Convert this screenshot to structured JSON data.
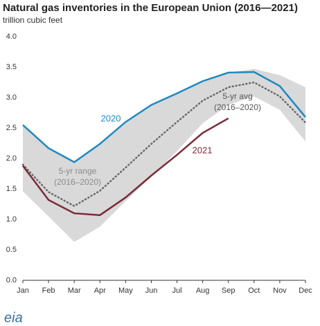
{
  "chart_data": {
    "type": "line",
    "title": "Natural gas inventories in the European Union (2016—2021)",
    "subtitle": "trillion cubic feet",
    "categories": [
      "Jan",
      "Feb",
      "Mar",
      "Apr",
      "May",
      "Jun",
      "Jul",
      "Aug",
      "Sep",
      "Oct",
      "Nov",
      "Dec"
    ],
    "series": [
      {
        "name": [
          "5-yr range",
          "(2016–2020)"
        ],
        "kind": "band",
        "color": "#d9d9d9",
        "label_color": "#8a8a8a",
        "values": [
          2.55,
          2.17,
          1.94,
          2.24,
          2.6,
          2.88,
          3.07,
          3.27,
          3.41,
          3.47,
          3.37,
          3.17
        ],
        "low": [
          1.46,
          1.05,
          0.63,
          0.88,
          1.3,
          1.7,
          2.12,
          2.58,
          2.88,
          3.02,
          2.8,
          2.28
        ]
      },
      {
        "name": [
          "5-yr avg",
          "(2016–2020)"
        ],
        "kind": "dotted",
        "color": "#666666",
        "label_color": "#555555",
        "values": [
          1.9,
          1.45,
          1.22,
          1.47,
          1.85,
          2.24,
          2.6,
          2.95,
          3.17,
          3.25,
          3.02,
          2.59
        ]
      },
      {
        "name": [
          "2020"
        ],
        "kind": "solid",
        "color": "#1f88c0",
        "label_color": "#1f88c0",
        "values": [
          2.55,
          2.17,
          1.94,
          2.24,
          2.6,
          2.88,
          3.07,
          3.27,
          3.41,
          3.42,
          3.19,
          2.68
        ]
      },
      {
        "name": [
          "2021"
        ],
        "kind": "solid",
        "color": "#7b2a37",
        "label_color": "#7b2a37",
        "values": [
          1.88,
          1.32,
          1.1,
          1.07,
          1.36,
          1.72,
          2.06,
          2.42,
          2.66,
          null,
          null,
          null
        ]
      }
    ],
    "ylim": [
      0,
      4
    ],
    "yticks": [
      {
        "value": 0,
        "label": "0.0"
      },
      {
        "value": 0.5,
        "label": "0.5"
      },
      {
        "value": 1,
        "label": "1.0"
      },
      {
        "value": 1.5,
        "label": "1.5"
      },
      {
        "value": 2,
        "label": "2.0"
      },
      {
        "value": 2.5,
        "label": "2.5"
      },
      {
        "value": 3,
        "label": "3.0"
      },
      {
        "value": 3.5,
        "label": "3.5"
      },
      {
        "value": 4,
        "label": "4.0"
      }
    ],
    "grid": false,
    "source_logo": "eia"
  }
}
